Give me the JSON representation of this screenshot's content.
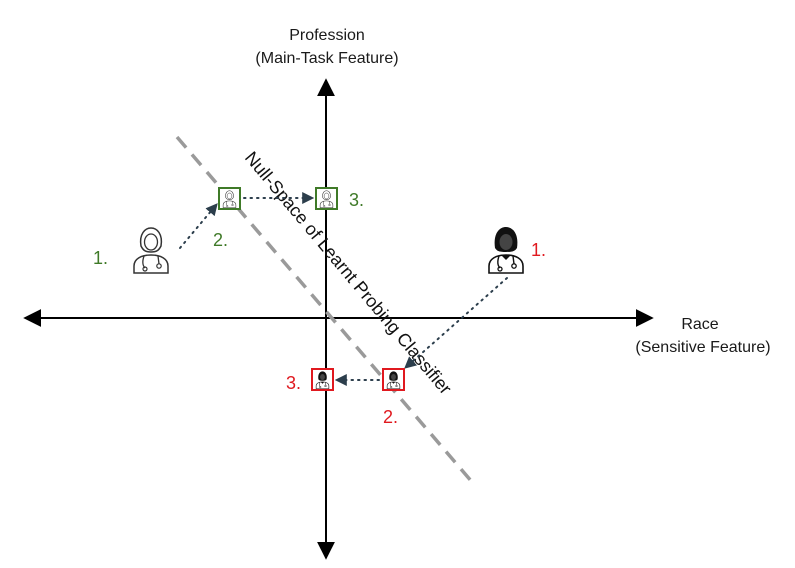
{
  "y_axis": {
    "line1": "Profession",
    "line2": "(Main-Task Feature)"
  },
  "x_axis": {
    "line1": "Race",
    "line2": "(Sensitive Feature)"
  },
  "null_space_label": "Null-Space of Learnt Probing Classifier",
  "female_path": {
    "color": "#3f7a28",
    "steps": [
      "1.",
      "2.",
      "3."
    ],
    "icon": "female-doctor-outline-icon"
  },
  "male_path": {
    "color": "#e0191f",
    "steps": [
      "1.",
      "2.",
      "3."
    ],
    "icon": "doctor-filled-icon"
  }
}
